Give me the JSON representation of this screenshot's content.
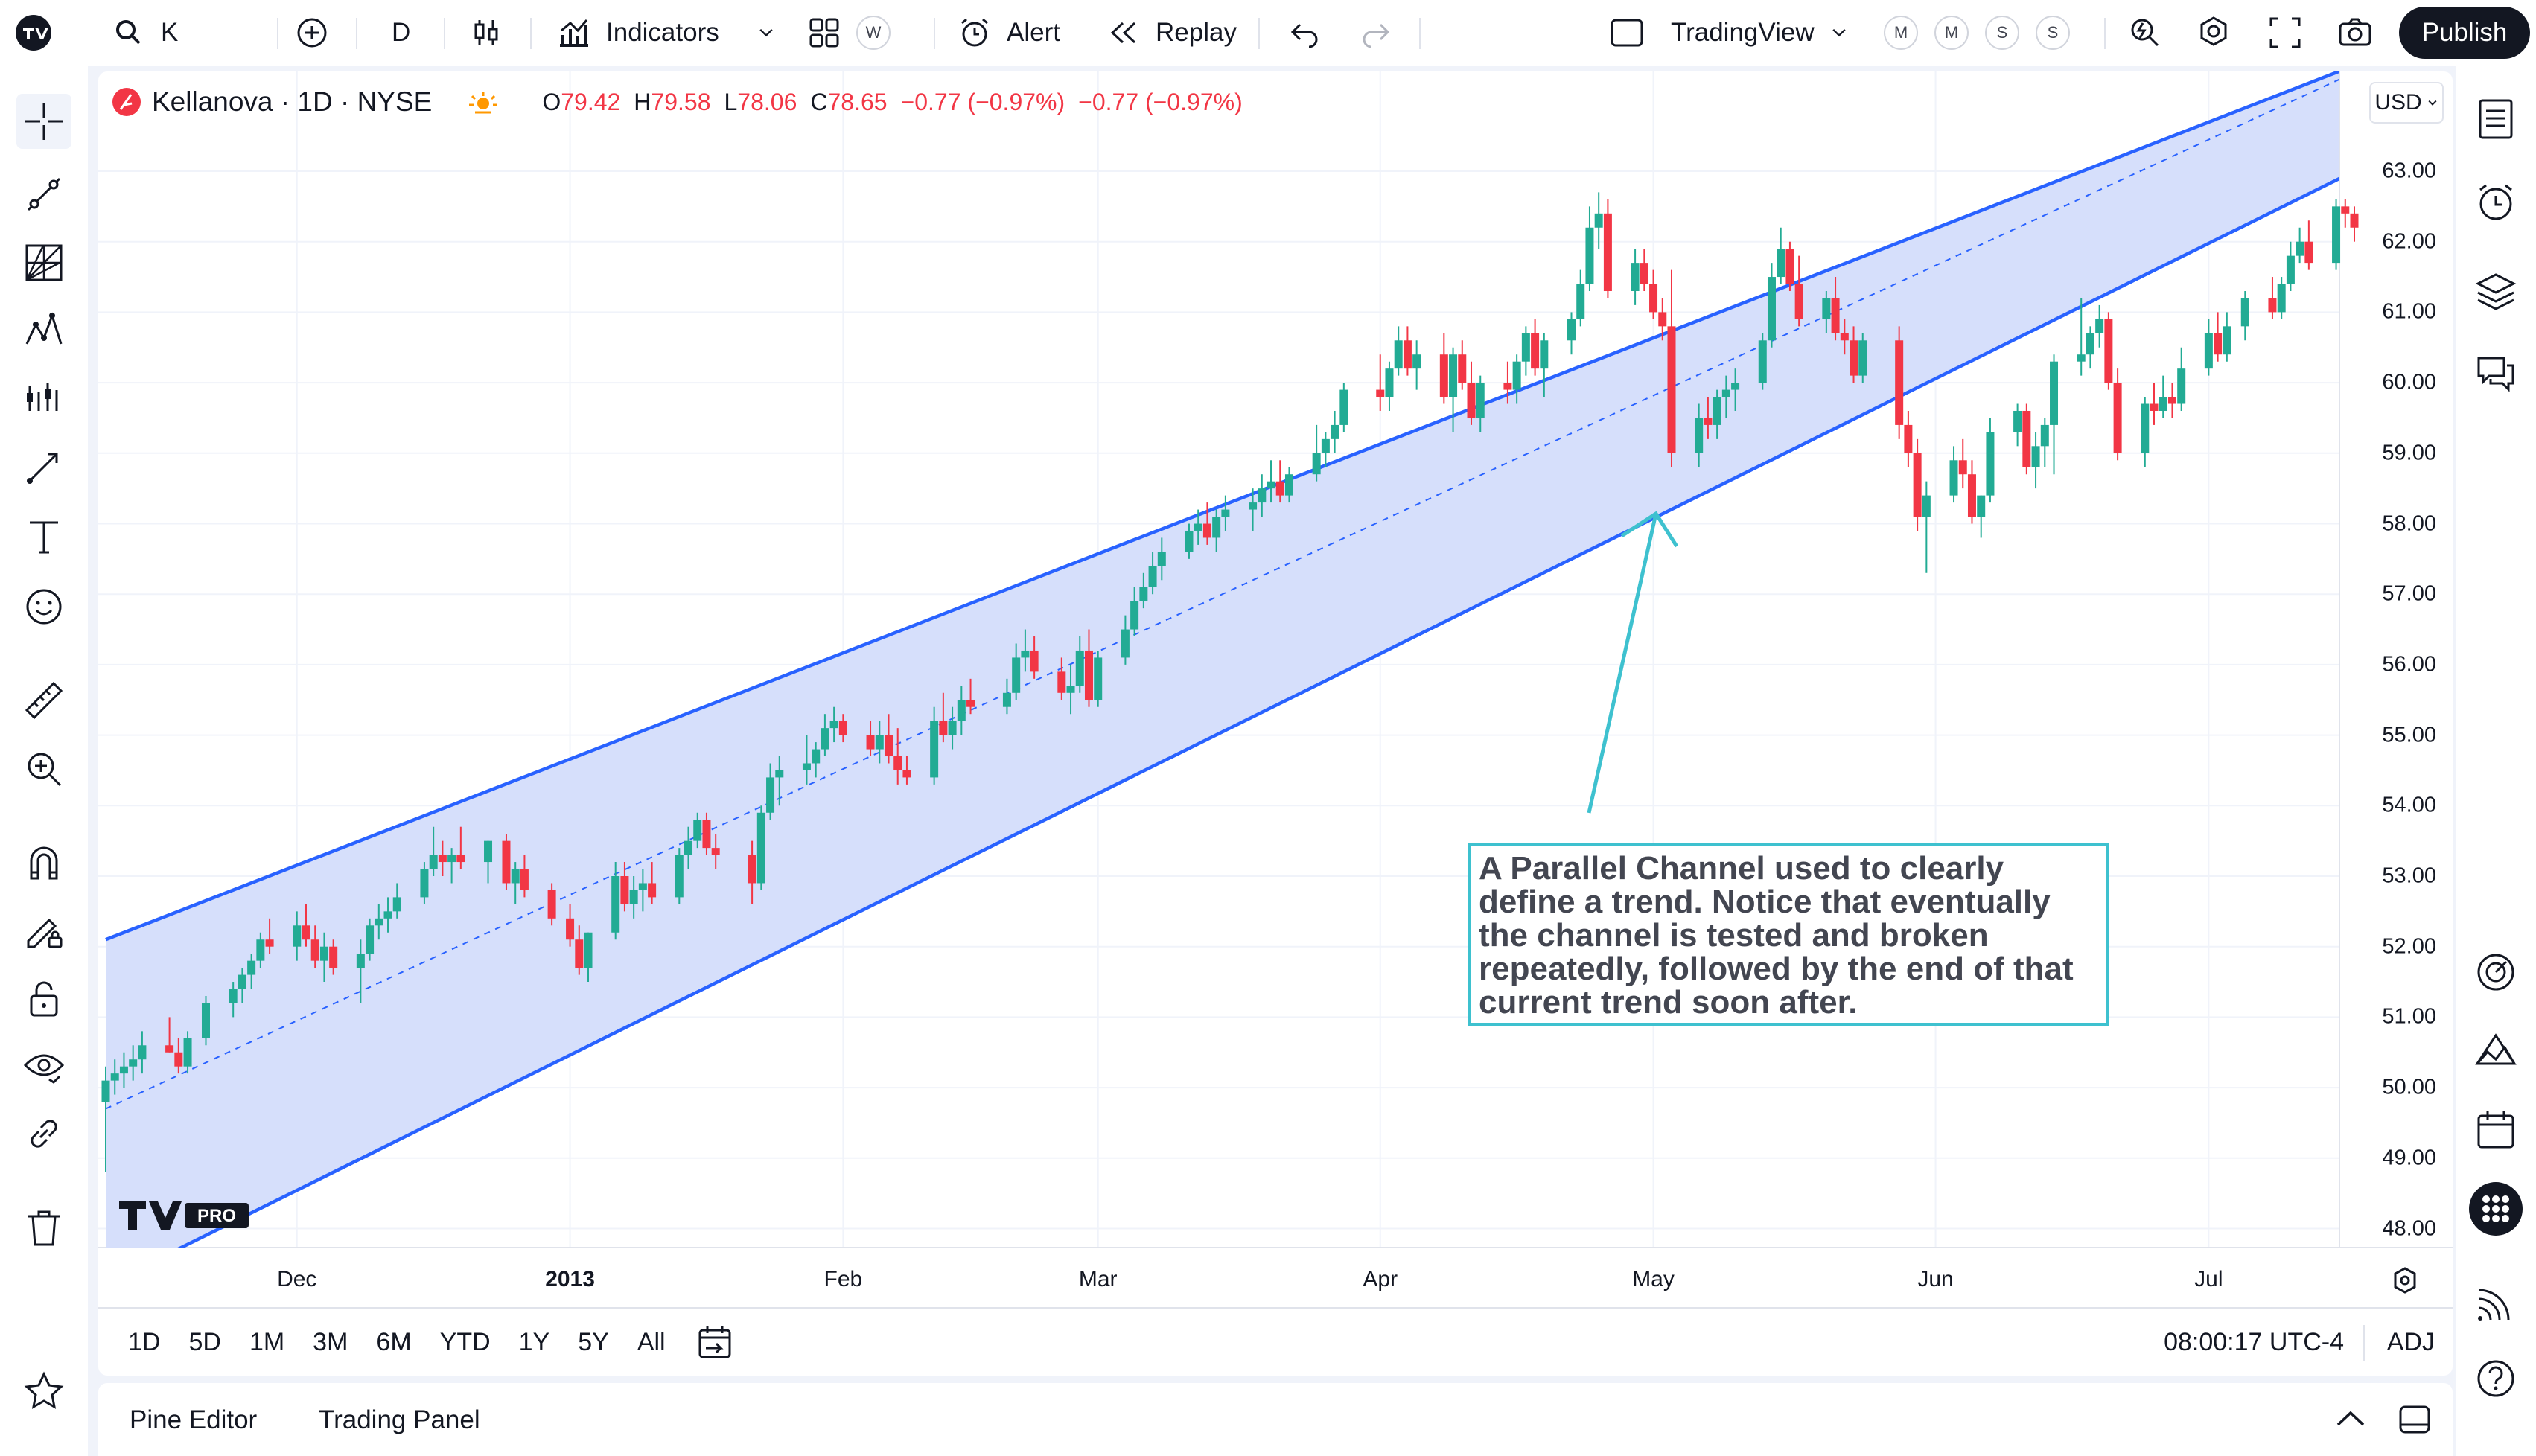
{
  "topbar": {
    "symbol": "K",
    "interval": "D",
    "indicators": "Indicators",
    "layout_badge": "W",
    "alert": "Alert",
    "replay": "Replay",
    "layout_name": "TradingView",
    "chips": [
      "M",
      "M",
      "S",
      "S"
    ],
    "publish": "Publish"
  },
  "legend": {
    "name": "Kellanova · 1D · NYSE",
    "open_label": "O",
    "open": "79.42",
    "high_label": "H",
    "high": "79.58",
    "low_label": "L",
    "low": "78.06",
    "close_label": "C",
    "close": "78.65",
    "change": "−0.77 (−0.97%)",
    "change2": "−0.77 (−0.97%)"
  },
  "currency": "USD",
  "colors": {
    "up": "#22ab94",
    "down": "#f23645",
    "channel": "#2962ff",
    "channel_fill": "#d4ddfb",
    "arrow": "#3ec1cf"
  },
  "annotation": "A Parallel Channel used to clearly define a trend. Notice that eventually the channel is tested and broken repeatedly, followed by the end of that current trend soon after.",
  "range_buttons": [
    "1D",
    "5D",
    "1M",
    "3M",
    "6M",
    "YTD",
    "1Y",
    "5Y",
    "All"
  ],
  "clock": "08:00:17 UTC-4",
  "adj": "ADJ",
  "bottom_tabs": [
    "Pine Editor",
    "Trading Panel"
  ],
  "chart_data": {
    "type": "candlestick",
    "title": "Kellanova · 1D · NYSE",
    "ylim": [
      47.5,
      63.5
    ],
    "y_ticks": [
      "63.00",
      "62.00",
      "61.00",
      "60.00",
      "59.00",
      "58.00",
      "57.00",
      "56.00",
      "55.00",
      "54.00",
      "53.00",
      "52.00",
      "51.00",
      "50.00",
      "49.00",
      "48.00"
    ],
    "x_ticks": [
      {
        "label": "Dec",
        "bold": false
      },
      {
        "label": "2013",
        "bold": true
      },
      {
        "label": "Feb",
        "bold": false
      },
      {
        "label": "Mar",
        "bold": false
      },
      {
        "label": "Apr",
        "bold": false
      },
      {
        "label": "May",
        "bold": false
      },
      {
        "label": "Jun",
        "bold": false
      },
      {
        "label": "Jul",
        "bold": false
      }
    ],
    "x_range": [
      "2012-11-12",
      "2013-07-17"
    ],
    "channel": {
      "upper": [
        [
          "2012-11-12",
          52.1
        ],
        [
          "2013-07-17",
          64.5
        ]
      ],
      "lower": [
        [
          "2012-11-12",
          47.2
        ],
        [
          "2013-07-17",
          63.0
        ]
      ],
      "median": [
        [
          "2012-11-12",
          49.7
        ],
        [
          "2013-07-17",
          64.4
        ]
      ]
    },
    "candles": [
      [
        "2012-11-12",
        49.8,
        50.3,
        48.8,
        50.1
      ],
      [
        "2012-11-13",
        50.1,
        50.4,
        49.9,
        50.2
      ],
      [
        "2012-11-14",
        50.2,
        50.5,
        50.0,
        50.3
      ],
      [
        "2012-11-15",
        50.3,
        50.6,
        50.1,
        50.4
      ],
      [
        "2012-11-16",
        50.4,
        50.8,
        50.2,
        50.6
      ],
      [
        "2012-11-19",
        50.6,
        51.0,
        50.5,
        50.5
      ],
      [
        "2012-11-20",
        50.5,
        50.7,
        50.2,
        50.3
      ],
      [
        "2012-11-21",
        50.3,
        50.8,
        50.2,
        50.7
      ],
      [
        "2012-11-23",
        50.7,
        51.3,
        50.6,
        51.2
      ],
      [
        "2012-11-26",
        51.2,
        51.5,
        51.0,
        51.4
      ],
      [
        "2012-11-27",
        51.4,
        51.7,
        51.2,
        51.6
      ],
      [
        "2012-11-28",
        51.6,
        51.9,
        51.4,
        51.8
      ],
      [
        "2012-11-29",
        51.8,
        52.2,
        51.7,
        52.1
      ],
      [
        "2012-11-30",
        52.1,
        52.4,
        51.9,
        52.0
      ],
      [
        "2012-12-03",
        52.0,
        52.5,
        51.8,
        52.3
      ],
      [
        "2012-12-04",
        52.3,
        52.6,
        52.0,
        52.1
      ],
      [
        "2012-12-05",
        52.1,
        52.3,
        51.7,
        51.8
      ],
      [
        "2012-12-06",
        51.8,
        52.2,
        51.5,
        52.0
      ],
      [
        "2012-12-07",
        52.0,
        52.1,
        51.6,
        51.7
      ],
      [
        "2012-12-10",
        51.7,
        52.1,
        51.2,
        51.9
      ],
      [
        "2012-12-11",
        51.9,
        52.4,
        51.8,
        52.3
      ],
      [
        "2012-12-12",
        52.3,
        52.6,
        52.1,
        52.4
      ],
      [
        "2012-12-13",
        52.4,
        52.7,
        52.2,
        52.5
      ],
      [
        "2012-12-14",
        52.5,
        52.9,
        52.4,
        52.7
      ],
      [
        "2012-12-17",
        52.7,
        53.2,
        52.6,
        53.1
      ],
      [
        "2012-12-18",
        53.1,
        53.7,
        53.0,
        53.3
      ],
      [
        "2012-12-19",
        53.3,
        53.5,
        53.0,
        53.2
      ],
      [
        "2012-12-20",
        53.2,
        53.4,
        52.9,
        53.3
      ],
      [
        "2012-12-21",
        53.3,
        53.7,
        53.1,
        53.2
      ],
      [
        "2012-12-24",
        53.2,
        53.5,
        52.9,
        53.5
      ],
      [
        "2012-12-26",
        53.5,
        53.6,
        52.8,
        52.9
      ],
      [
        "2012-12-27",
        52.9,
        53.2,
        52.6,
        53.1
      ],
      [
        "2012-12-28",
        53.1,
        53.3,
        52.7,
        52.8
      ],
      [
        "2012-12-31",
        52.8,
        52.9,
        52.3,
        52.4
      ],
      [
        "2013-01-02",
        52.4,
        52.6,
        52.0,
        52.1
      ],
      [
        "2013-01-03",
        52.1,
        52.3,
        51.6,
        51.7
      ],
      [
        "2013-01-04",
        51.7,
        52.2,
        51.5,
        52.2
      ],
      [
        "2013-01-07",
        52.2,
        53.2,
        52.1,
        53.0
      ],
      [
        "2013-01-08",
        53.0,
        53.2,
        52.5,
        52.6
      ],
      [
        "2013-01-09",
        52.6,
        53.0,
        52.4,
        52.8
      ],
      [
        "2013-01-10",
        52.8,
        53.1,
        52.5,
        52.9
      ],
      [
        "2013-01-11",
        52.9,
        53.2,
        52.6,
        52.7
      ],
      [
        "2013-01-14",
        52.7,
        53.4,
        52.6,
        53.3
      ],
      [
        "2013-01-15",
        53.3,
        53.7,
        53.1,
        53.5
      ],
      [
        "2013-01-16",
        53.5,
        53.9,
        53.4,
        53.8
      ],
      [
        "2013-01-17",
        53.8,
        53.9,
        53.3,
        53.4
      ],
      [
        "2013-01-18",
        53.4,
        53.6,
        53.1,
        53.3
      ],
      [
        "2013-01-22",
        53.3,
        53.5,
        52.6,
        52.9
      ],
      [
        "2013-01-23",
        52.9,
        54.0,
        52.8,
        53.9
      ],
      [
        "2013-01-24",
        53.9,
        54.6,
        53.8,
        54.4
      ],
      [
        "2013-01-25",
        54.4,
        54.7,
        54.0,
        54.5
      ],
      [
        "2013-01-28",
        54.5,
        55.0,
        54.3,
        54.6
      ],
      [
        "2013-01-29",
        54.6,
        54.9,
        54.4,
        54.8
      ],
      [
        "2013-01-30",
        54.8,
        55.3,
        54.7,
        55.1
      ],
      [
        "2013-01-31",
        55.1,
        55.4,
        54.9,
        55.2
      ],
      [
        "2013-02-01",
        55.2,
        55.3,
        54.9,
        55.0
      ],
      [
        "2013-02-04",
        55.0,
        55.2,
        54.7,
        54.8
      ],
      [
        "2013-02-05",
        54.8,
        55.2,
        54.6,
        55.0
      ],
      [
        "2013-02-06",
        55.0,
        55.3,
        54.6,
        54.7
      ],
      [
        "2013-02-07",
        54.7,
        55.1,
        54.3,
        54.5
      ],
      [
        "2013-02-08",
        54.5,
        54.7,
        54.3,
        54.4
      ],
      [
        "2013-02-11",
        54.4,
        55.4,
        54.3,
        55.2
      ],
      [
        "2013-02-12",
        55.2,
        55.6,
        54.9,
        55.0
      ],
      [
        "2013-02-13",
        55.0,
        55.4,
        54.8,
        55.2
      ],
      [
        "2013-02-14",
        55.2,
        55.7,
        55.0,
        55.5
      ],
      [
        "2013-02-15",
        55.5,
        55.8,
        55.3,
        55.4
      ],
      [
        "2013-02-19",
        55.4,
        55.8,
        55.3,
        55.6
      ],
      [
        "2013-02-20",
        55.6,
        56.3,
        55.5,
        56.1
      ],
      [
        "2013-02-21",
        56.1,
        56.5,
        55.9,
        56.2
      ],
      [
        "2013-02-22",
        56.2,
        56.4,
        55.8,
        55.9
      ],
      [
        "2013-02-25",
        55.9,
        56.1,
        55.5,
        55.6
      ],
      [
        "2013-02-26",
        55.6,
        56.0,
        55.3,
        55.7
      ],
      [
        "2013-02-27",
        55.7,
        56.4,
        55.6,
        56.2
      ],
      [
        "2013-02-28",
        56.2,
        56.5,
        55.4,
        55.5
      ],
      [
        "2013-03-01",
        55.5,
        56.2,
        55.4,
        56.1
      ],
      [
        "2013-03-04",
        56.1,
        56.7,
        56.0,
        56.5
      ],
      [
        "2013-03-05",
        56.5,
        57.1,
        56.4,
        56.9
      ],
      [
        "2013-03-06",
        56.9,
        57.3,
        56.8,
        57.1
      ],
      [
        "2013-03-07",
        57.1,
        57.6,
        57.0,
        57.4
      ],
      [
        "2013-03-08",
        57.4,
        57.8,
        57.2,
        57.6
      ],
      [
        "2013-03-11",
        57.6,
        58.0,
        57.5,
        57.9
      ],
      [
        "2013-03-12",
        57.9,
        58.2,
        57.7,
        58.0
      ],
      [
        "2013-03-13",
        58.0,
        58.3,
        57.7,
        57.8
      ],
      [
        "2013-03-14",
        57.8,
        58.2,
        57.6,
        58.1
      ],
      [
        "2013-03-15",
        58.1,
        58.4,
        57.9,
        58.2
      ],
      [
        "2013-03-18",
        58.2,
        58.5,
        57.9,
        58.3
      ],
      [
        "2013-03-19",
        58.3,
        58.7,
        58.1,
        58.5
      ],
      [
        "2013-03-20",
        58.5,
        58.9,
        58.3,
        58.6
      ],
      [
        "2013-03-21",
        58.6,
        58.9,
        58.3,
        58.4
      ],
      [
        "2013-03-22",
        58.4,
        58.8,
        58.3,
        58.7
      ],
      [
        "2013-03-25",
        58.7,
        59.4,
        58.6,
        59.0
      ],
      [
        "2013-03-26",
        59.0,
        59.3,
        58.8,
        59.2
      ],
      [
        "2013-03-27",
        59.2,
        59.6,
        59.0,
        59.4
      ],
      [
        "2013-03-28",
        59.4,
        60.0,
        59.3,
        59.9
      ],
      [
        "2013-04-01",
        59.9,
        60.4,
        59.6,
        59.8
      ],
      [
        "2013-04-02",
        59.8,
        60.3,
        59.6,
        60.2
      ],
      [
        "2013-04-03",
        60.2,
        60.8,
        60.1,
        60.6
      ],
      [
        "2013-04-04",
        60.6,
        60.8,
        60.1,
        60.2
      ],
      [
        "2013-04-05",
        60.2,
        60.6,
        59.9,
        60.4
      ],
      [
        "2013-04-08",
        60.4,
        60.7,
        59.7,
        59.8
      ],
      [
        "2013-04-09",
        59.8,
        60.5,
        59.3,
        60.4
      ],
      [
        "2013-04-10",
        60.4,
        60.6,
        59.9,
        60.0
      ],
      [
        "2013-04-11",
        60.0,
        60.3,
        59.4,
        59.5
      ],
      [
        "2013-04-12",
        59.5,
        60.1,
        59.3,
        60.0
      ],
      [
        "2013-04-15",
        60.0,
        60.3,
        59.7,
        59.9
      ],
      [
        "2013-04-16",
        59.9,
        60.4,
        59.7,
        60.3
      ],
      [
        "2013-04-17",
        60.3,
        60.8,
        60.1,
        60.7
      ],
      [
        "2013-04-18",
        60.7,
        60.9,
        60.1,
        60.2
      ],
      [
        "2013-04-19",
        60.2,
        60.7,
        59.8,
        60.6
      ],
      [
        "2013-04-22",
        60.6,
        61.0,
        60.4,
        60.9
      ],
      [
        "2013-04-23",
        60.9,
        61.6,
        60.8,
        61.4
      ],
      [
        "2013-04-24",
        61.4,
        62.5,
        61.3,
        62.2
      ],
      [
        "2013-04-25",
        62.2,
        62.7,
        61.9,
        62.4
      ],
      [
        "2013-04-26",
        62.4,
        62.6,
        61.2,
        61.3
      ],
      [
        "2013-04-29",
        61.3,
        61.9,
        61.1,
        61.7
      ],
      [
        "2013-04-30",
        61.7,
        61.9,
        61.3,
        61.4
      ],
      [
        "2013-05-01",
        61.4,
        61.6,
        60.9,
        61.0
      ],
      [
        "2013-05-02",
        61.0,
        61.2,
        60.6,
        60.8
      ],
      [
        "2013-05-03",
        60.8,
        61.6,
        58.8,
        59.0
      ],
      [
        "2013-05-06",
        59.0,
        59.7,
        58.8,
        59.5
      ],
      [
        "2013-05-07",
        59.5,
        59.8,
        59.2,
        59.4
      ],
      [
        "2013-05-08",
        59.4,
        59.9,
        59.2,
        59.8
      ],
      [
        "2013-05-09",
        59.8,
        60.1,
        59.5,
        59.9
      ],
      [
        "2013-05-10",
        59.9,
        60.2,
        59.6,
        60.0
      ],
      [
        "2013-05-13",
        60.0,
        60.7,
        59.9,
        60.6
      ],
      [
        "2013-05-14",
        60.6,
        61.7,
        60.5,
        61.5
      ],
      [
        "2013-05-15",
        61.5,
        62.2,
        61.4,
        61.9
      ],
      [
        "2013-05-16",
        61.9,
        62.0,
        61.3,
        61.4
      ],
      [
        "2013-05-17",
        61.4,
        61.8,
        60.8,
        60.9
      ],
      [
        "2013-05-20",
        60.9,
        61.3,
        60.7,
        61.2
      ],
      [
        "2013-05-21",
        61.2,
        61.5,
        60.6,
        60.7
      ],
      [
        "2013-05-22",
        60.7,
        60.9,
        60.4,
        60.6
      ],
      [
        "2013-05-23",
        60.6,
        60.8,
        60.0,
        60.1
      ],
      [
        "2013-05-24",
        60.1,
        60.7,
        60.0,
        60.6
      ],
      [
        "2013-05-28",
        60.6,
        60.8,
        59.2,
        59.4
      ],
      [
        "2013-05-29",
        59.4,
        59.6,
        58.8,
        59.0
      ],
      [
        "2013-05-30",
        59.0,
        59.2,
        57.9,
        58.1
      ],
      [
        "2013-05-31",
        58.1,
        58.6,
        57.3,
        58.4
      ],
      [
        "2013-06-03",
        58.4,
        59.1,
        58.3,
        58.9
      ],
      [
        "2013-06-04",
        58.9,
        59.2,
        58.5,
        58.7
      ],
      [
        "2013-06-05",
        58.7,
        58.9,
        58.0,
        58.1
      ],
      [
        "2013-06-06",
        58.1,
        58.4,
        57.8,
        58.4
      ],
      [
        "2013-06-07",
        58.4,
        59.5,
        58.3,
        59.3
      ],
      [
        "2013-06-10",
        59.3,
        59.7,
        59.1,
        59.6
      ],
      [
        "2013-06-11",
        59.6,
        59.7,
        58.7,
        58.8
      ],
      [
        "2013-06-12",
        58.8,
        59.3,
        58.5,
        59.1
      ],
      [
        "2013-06-13",
        59.1,
        59.5,
        58.8,
        59.4
      ],
      [
        "2013-06-14",
        59.4,
        60.4,
        58.7,
        60.3
      ],
      [
        "2013-06-17",
        60.3,
        61.2,
        60.1,
        60.4
      ],
      [
        "2013-06-18",
        60.4,
        60.8,
        60.2,
        60.7
      ],
      [
        "2013-06-19",
        60.7,
        61.1,
        60.5,
        60.9
      ],
      [
        "2013-06-20",
        60.9,
        61.0,
        59.9,
        60.0
      ],
      [
        "2013-06-21",
        60.0,
        60.2,
        58.9,
        59.0
      ],
      [
        "2013-06-24",
        59.0,
        59.8,
        58.8,
        59.7
      ],
      [
        "2013-06-25",
        59.7,
        60.0,
        59.4,
        59.6
      ],
      [
        "2013-06-26",
        59.6,
        60.1,
        59.5,
        59.8
      ],
      [
        "2013-06-27",
        59.8,
        60.0,
        59.5,
        59.7
      ],
      [
        "2013-06-28",
        59.7,
        60.5,
        59.6,
        60.2
      ],
      [
        "2013-07-01",
        60.2,
        60.9,
        60.1,
        60.7
      ],
      [
        "2013-07-02",
        60.7,
        61.0,
        60.3,
        60.4
      ],
      [
        "2013-07-03",
        60.4,
        61.0,
        60.3,
        60.8
      ],
      [
        "2013-07-05",
        60.8,
        61.3,
        60.6,
        61.2
      ],
      [
        "2013-07-08",
        61.2,
        61.5,
        60.9,
        61.0
      ],
      [
        "2013-07-09",
        61.0,
        61.5,
        60.9,
        61.4
      ],
      [
        "2013-07-10",
        61.4,
        62.0,
        61.3,
        61.8
      ],
      [
        "2013-07-11",
        61.8,
        62.2,
        61.7,
        62.0
      ],
      [
        "2013-07-12",
        62.0,
        62.3,
        61.6,
        61.7
      ],
      [
        "2013-07-15",
        61.7,
        62.6,
        61.6,
        62.5
      ],
      [
        "2013-07-16",
        62.5,
        62.6,
        62.2,
        62.4
      ],
      [
        "2013-07-17",
        62.4,
        62.5,
        62.0,
        62.2
      ]
    ]
  }
}
